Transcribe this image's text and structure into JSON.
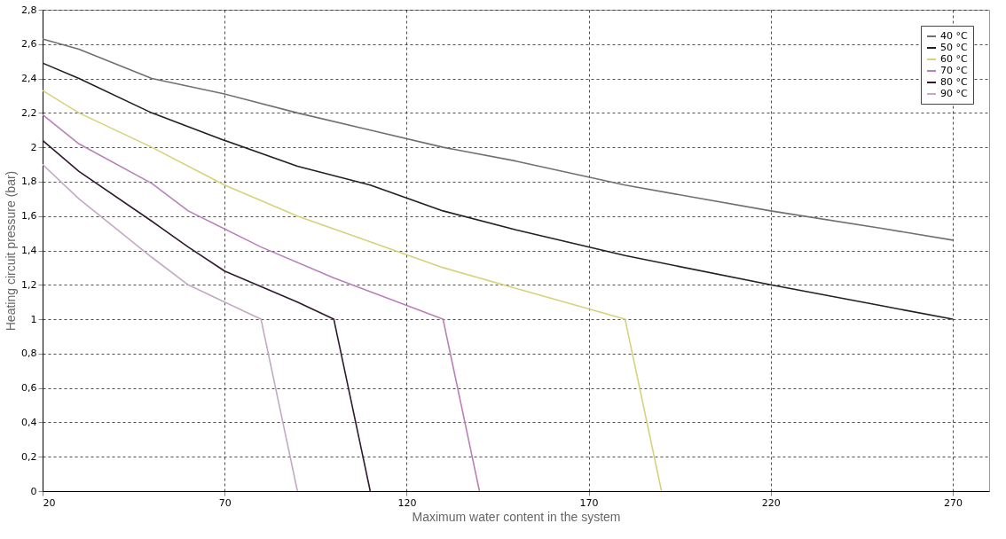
{
  "chart_data": {
    "type": "line",
    "xlabel": "Maximum water content in the system",
    "ylabel": "Heating circuit pressure (bar)",
    "xlim": [
      20,
      280
    ],
    "xticks": [
      20,
      70,
      120,
      170,
      220,
      270
    ],
    "ylim": [
      0,
      2.8
    ],
    "yticks": [
      0,
      {
        "value": 0.2,
        "label": "0,2"
      },
      {
        "value": 0.4,
        "label": "0,4"
      },
      {
        "value": 0.6,
        "label": "0,6"
      },
      {
        "value": 0.8,
        "label": "0,8"
      },
      1,
      {
        "value": 1.2,
        "label": "1,2"
      },
      {
        "value": 1.4,
        "label": "1,4"
      },
      {
        "value": 1.6,
        "label": "1,6"
      },
      {
        "value": 1.8,
        "label": "1,8"
      },
      2,
      {
        "value": 2.2,
        "label": "2,2"
      },
      {
        "value": 2.4,
        "label": "2,4"
      },
      {
        "value": 2.6,
        "label": "2,6"
      },
      {
        "value": 2.8,
        "label": "2,8"
      }
    ],
    "grid": true,
    "legend": "top right",
    "line_style": "solid",
    "marker": "none",
    "series": [
      {
        "name": "40 °C",
        "color": "#707070",
        "x": [
          20,
          30,
          50,
          70,
          90,
          110,
          130,
          150,
          180,
          220,
          250,
          270
        ],
        "values": [
          2.63,
          2.57,
          2.4,
          2.31,
          2.2,
          2.1,
          2.0,
          1.92,
          1.78,
          1.63,
          1.53,
          1.46
        ]
      },
      {
        "name": "50 °C",
        "color": "#202020",
        "x": [
          20,
          30,
          50,
          70,
          90,
          110,
          130,
          150,
          180,
          220,
          250,
          270
        ],
        "values": [
          2.49,
          2.4,
          2.2,
          2.04,
          1.89,
          1.78,
          1.63,
          1.52,
          1.37,
          1.2,
          1.08,
          1.0
        ]
      },
      {
        "name": "60 °C",
        "color": "#d6d27a",
        "x": [
          20,
          30,
          50,
          70,
          90,
          110,
          130,
          150,
          180,
          190
        ],
        "values": [
          2.33,
          2.2,
          2.0,
          1.78,
          1.6,
          1.45,
          1.3,
          1.18,
          1.0,
          0
        ]
      },
      {
        "name": "70 °C",
        "color": "#b97fb9",
        "x": [
          20,
          30,
          50,
          60,
          80,
          100,
          110,
          130,
          140
        ],
        "values": [
          2.19,
          2.02,
          1.79,
          1.63,
          1.42,
          1.24,
          1.16,
          1.0,
          0
        ]
      },
      {
        "name": "80 °C",
        "color": "#301830",
        "x": [
          20,
          30,
          50,
          60,
          70,
          80,
          90,
          100,
          110
        ],
        "values": [
          2.04,
          1.86,
          1.57,
          1.42,
          1.28,
          1.19,
          1.1,
          1.0,
          0
        ]
      },
      {
        "name": "90 °C",
        "color": "#c4a8c4",
        "x": [
          20,
          30,
          50,
          60,
          70,
          80,
          90
        ],
        "values": [
          1.9,
          1.7,
          1.36,
          1.2,
          1.1,
          1.0,
          0
        ]
      }
    ]
  }
}
